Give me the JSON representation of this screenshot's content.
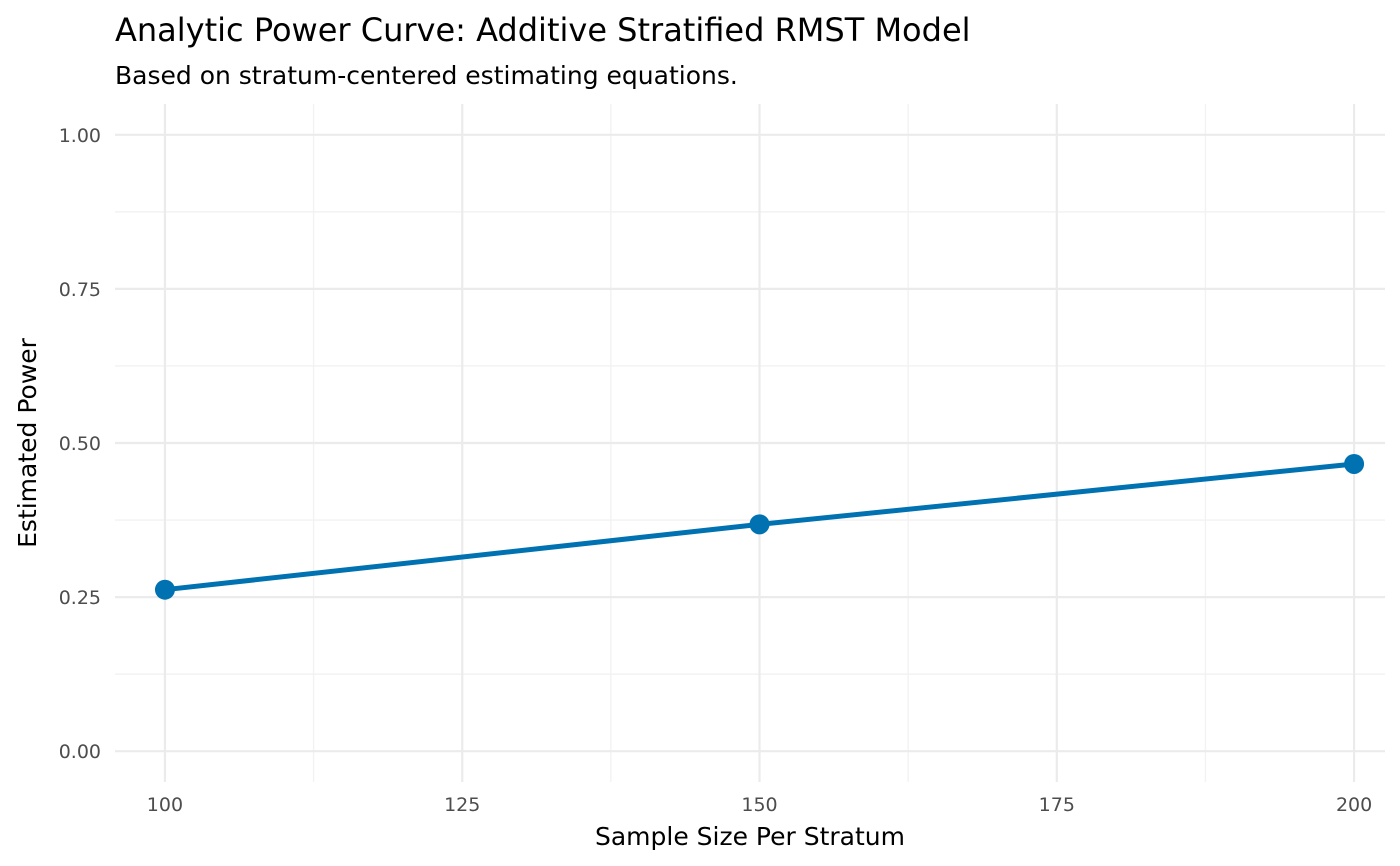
{
  "chart_data": {
    "type": "line",
    "title": "Analytic Power Curve: Additive Stratified RMST Model",
    "subtitle": "Based on stratum-centered estimating equations.",
    "xlabel": "Sample Size Per Stratum",
    "ylabel": "Estimated Power",
    "x": [
      100,
      150,
      200
    ],
    "series": [
      {
        "values": [
          0.262,
          0.368,
          0.466
        ]
      }
    ],
    "xlim": [
      95.8,
      202.6
    ],
    "ylim": [
      -0.05,
      1.05
    ],
    "x_ticks": [
      100,
      125,
      150,
      175,
      200
    ],
    "x_tick_labels": [
      "100",
      "125",
      "150",
      "175",
      "200"
    ],
    "y_ticks": [
      0,
      0.25,
      0.5,
      0.75,
      1
    ],
    "y_tick_labels": [
      "0.00",
      "0.25",
      "0.50",
      "0.75",
      "1.00"
    ],
    "x_minor_ticks": [
      112.5,
      137.5,
      162.5,
      187.5
    ],
    "y_minor_ticks": [
      0.125,
      0.375,
      0.625,
      0.875
    ],
    "grid": true,
    "legend": "none",
    "line_color": "#0072B2",
    "point_color": "#0072B2"
  }
}
